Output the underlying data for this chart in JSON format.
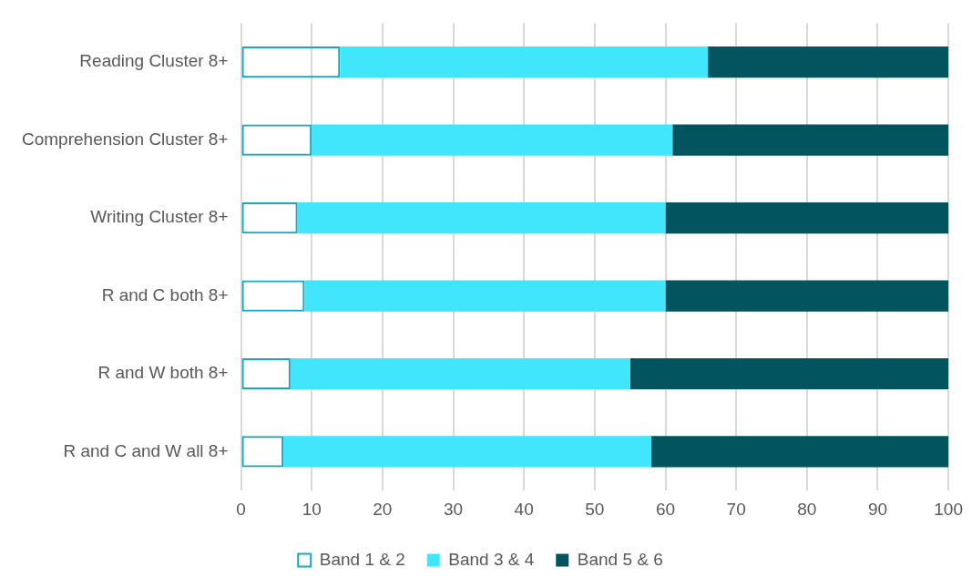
{
  "chart_data": {
    "type": "bar",
    "orientation": "horizontal",
    "stacked": true,
    "categories": [
      "Reading Cluster 8+",
      "Comprehension Cluster 8+",
      "Writing Cluster 8+",
      "R and C both 8+",
      "R and W both 8+",
      "R and C and W all 8+"
    ],
    "series": [
      {
        "name": "Band 1 & 2",
        "color": "#17a7c1",
        "values": [
          14,
          10,
          8,
          9,
          7,
          6
        ]
      },
      {
        "name": "Band 3 & 4",
        "color": "#41e6fd",
        "values": [
          52,
          51,
          52,
          51,
          48,
          52
        ]
      },
      {
        "name": "Band 5 & 6",
        "color": "#02545e",
        "values": [
          34,
          39,
          40,
          40,
          45,
          42
        ]
      }
    ],
    "xlim": [
      0,
      100
    ],
    "xticks": [
      0,
      10,
      20,
      30,
      40,
      50,
      60,
      70,
      80,
      90,
      100
    ],
    "grid": "x",
    "legend": "bottom"
  }
}
